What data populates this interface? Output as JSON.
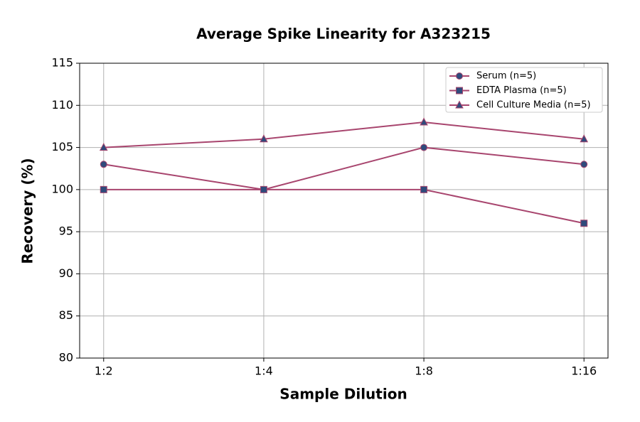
{
  "chart_data": {
    "type": "line",
    "title": "Average Spike Linearity for A323215",
    "x_label": "Sample Dilution",
    "y_label": "Recovery (%)",
    "categories": [
      "1:2",
      "1:4",
      "1:8",
      "1:16"
    ],
    "series": [
      {
        "name": "Serum (n=5)",
        "color": "#a8456e",
        "marker_color": "#2f4b7c",
        "marker": "circle",
        "values": [
          103,
          100,
          105,
          103
        ]
      },
      {
        "name": "EDTA Plasma (n=5)",
        "color": "#a8456e",
        "marker_color": "#2f4b7c",
        "marker": "square",
        "values": [
          100,
          100,
          100,
          96
        ]
      },
      {
        "name": "Cell Culture Media (n=5)",
        "color": "#a8456e",
        "marker_color": "#2f4b7c",
        "marker": "triangle",
        "values": [
          105,
          106,
          108,
          106
        ]
      }
    ],
    "ylim": [
      80,
      115
    ],
    "yticks": [
      80,
      85,
      90,
      95,
      100,
      105,
      110,
      115
    ],
    "grid": true,
    "legend": "upper right"
  }
}
